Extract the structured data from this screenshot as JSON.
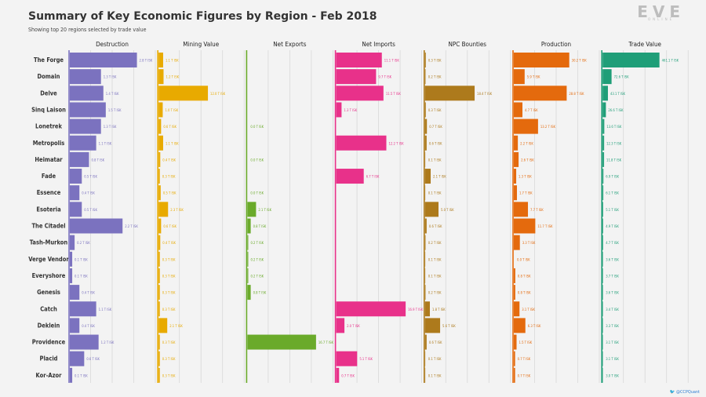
{
  "title": "Summary of Key Economic Figures by Region - Feb 2018",
  "subtitle": "Showing top 20 regions selected by trade value",
  "logo": {
    "main": "EVE",
    "sub": "ONLINE"
  },
  "credit": "@CCPQuant",
  "chart_data": {
    "type": "bar",
    "orientation": "horizontal",
    "unit": "T ISK",
    "categories": [
      "The Forge",
      "Domain",
      "Delve",
      "Sinq Laison",
      "Lonetrek",
      "Metropolis",
      "Heimatar",
      "Fade",
      "Essence",
      "Esoteria",
      "The Citadel",
      "Tash-Murkon",
      "Verge Vendor",
      "Everyshore",
      "Genesis",
      "Catch",
      "Deklein",
      "Providence",
      "Placid",
      "Kor-Azor"
    ],
    "series": [
      {
        "name": "Destruction",
        "color": "#7b72bf",
        "max": 3.6,
        "values": [
          2.8,
          1.3,
          1.4,
          1.5,
          1.3,
          1.1,
          0.8,
          0.5,
          0.4,
          0.5,
          2.2,
          0.2,
          0.1,
          0.1,
          0.4,
          1.1,
          0.4,
          1.2,
          0.6,
          0.1
        ],
        "labels": [
          "2.8 T ISK",
          "1.3 T ISK",
          "1.4 T ISK",
          "1.5 T ISK",
          "1.3 T ISK",
          "1.1 T ISK",
          "0.8 T ISK",
          "0.5 T ISK",
          "0.4 T ISK",
          "0.5 T ISK",
          "2.2 T ISK",
          "0.2 T ISK",
          "0.1 T ISK",
          "0.1 T ISK",
          "0.4 T ISK",
          "1.1 T ISK",
          "0.4 T ISK",
          "1.2 T ISK",
          "0.6 T ISK",
          "0.1 T ISK"
        ]
      },
      {
        "name": "Mining Value",
        "color": "#e8aa00",
        "max": 21,
        "values": [
          1.1,
          1.2,
          12.0,
          1.0,
          0.6,
          1.1,
          0.4,
          0.3,
          0.5,
          2.3,
          0.6,
          0.4,
          0.3,
          0.3,
          0.3,
          0.3,
          2.1,
          0.3,
          0.3,
          0.3
        ],
        "labels": [
          "1.1 T ISK",
          "1.2 T ISK",
          "12.0 T ISK",
          "1.0 T ISK",
          "0.6 T ISK",
          "1.1 T ISK",
          "0.4 T ISK",
          "0.3 T ISK",
          "0.5 T ISK",
          "2.3 T ISK",
          "0.6 T ISK",
          "0.4 T ISK",
          "0.3 T ISK",
          "0.3 T ISK",
          "0.3 T ISK",
          "0.3 T ISK",
          "2.1 T ISK",
          "0.3 T ISK",
          "0.3 T ISK",
          "0.3 T ISK"
        ]
      },
      {
        "name": "Net Exports",
        "color": "#6aaa2a",
        "max": 21,
        "values": [
          0,
          0,
          0,
          0,
          0.0,
          0,
          0.0,
          0,
          0.0,
          2.1,
          0.8,
          0.2,
          0.2,
          0.2,
          0.8,
          0,
          0,
          16.7,
          0,
          0
        ],
        "labels": [
          "",
          "",
          "",
          "",
          "0.0 T ISK",
          "",
          "0.0 T ISK",
          "",
          "0.0 T ISK",
          "2.1 T ISK",
          "0.8 T ISK",
          "0.2 T ISK",
          "0.2 T ISK",
          "0.2 T ISK",
          "0.8 T ISK",
          "",
          "",
          "16.7 T ISK",
          "",
          ""
        ]
      },
      {
        "name": "Net Imports",
        "color": "#e8318a",
        "max": 21,
        "values": [
          11.1,
          9.7,
          11.5,
          1.3,
          0,
          12.2,
          0,
          6.7,
          0,
          0,
          0,
          0,
          0,
          0,
          0,
          16.9,
          2.0,
          0,
          5.1,
          0.7
        ],
        "labels": [
          "11.1 T ISK",
          "9.7 T ISK",
          "11.5 T ISK",
          "1.3 T ISK",
          "",
          "12.2 T ISK",
          "",
          "6.7 T ISK",
          "",
          "",
          "",
          "",
          "",
          "",
          "",
          "16.9 T ISK",
          "2.0 T ISK",
          "",
          "5.1 T ISK",
          "0.7 T ISK"
        ]
      },
      {
        "name": "NPC Bounties",
        "color": "#ad7a1c",
        "max": 32,
        "values": [
          0.3,
          0.2,
          18.4,
          0.3,
          0.7,
          0.6,
          0.1,
          2.1,
          0.1,
          5.0,
          0.6,
          0.2,
          0.1,
          0.1,
          0.2,
          1.8,
          5.6,
          0.6,
          0.1,
          0.1
        ],
        "labels": [
          "0.3 T ISK",
          "0.2 T ISK",
          "18.4 T ISK",
          "0.3 T ISK",
          "0.7 T ISK",
          "0.6 T ISK",
          "0.1 T ISK",
          "2.1 T ISK",
          "0.1 T ISK",
          "5.0 T ISK",
          "0.6 T ISK",
          "0.2 T ISK",
          "0.1 T ISK",
          "0.1 T ISK",
          "0.2 T ISK",
          "1.8 T ISK",
          "5.6 T ISK",
          "0.6 T ISK",
          "0.1 T ISK",
          "0.1 T ISK"
        ]
      },
      {
        "name": "Production",
        "color": "#e46a0d",
        "max": 47,
        "values": [
          30.2,
          5.9,
          28.8,
          4.7,
          13.2,
          2.2,
          2.6,
          1.3,
          1.7,
          7.7,
          11.7,
          3.3,
          0.0,
          0.8,
          0.8,
          3.1,
          6.3,
          1.5,
          0.7,
          0.7
        ],
        "labels": [
          "30.2 T ISK",
          "5.9 T ISK",
          "28.8 T ISK",
          "4.7 T ISK",
          "13.2 T ISK",
          "2.2 T ISK",
          "2.6 T ISK",
          "1.3 T ISK",
          "1.7 T ISK",
          "7.7 T ISK",
          "11.7 T ISK",
          "3.3 T ISK",
          "0.0 T ISK",
          "0.8 T ISK",
          "0.8 T ISK",
          "3.1 T ISK",
          "6.3 T ISK",
          "1.5 T ISK",
          "0.7 T ISK",
          "0.7 T ISK"
        ]
      },
      {
        "name": "Trade Value",
        "color": "#1f9e78",
        "max": 700,
        "values": [
          461.1,
          72.6,
          43.1,
          26.6,
          13.6,
          12.3,
          11.8,
          6.9,
          6.1,
          5.1,
          4.9,
          4.7,
          3.6,
          3.7,
          3.6,
          3.4,
          3.3,
          3.1,
          3.1,
          3.0
        ],
        "labels": [
          "461.1 T ISK",
          "72.6 T ISK",
          "43.1 T ISK",
          "26.6 T ISK",
          "13.6 T ISK",
          "12.3 T ISK",
          "11.8 T ISK",
          "6.9 T ISK",
          "6.1 T ISK",
          "5.1 T ISK",
          "4.9 T ISK",
          "4.7 T ISK",
          "3.6 T ISK",
          "3.7 T ISK",
          "3.6 T ISK",
          "3.4 T ISK",
          "3.3 T ISK",
          "3.1 T ISK",
          "3.1 T ISK",
          "3.0 T ISK"
        ]
      }
    ]
  }
}
